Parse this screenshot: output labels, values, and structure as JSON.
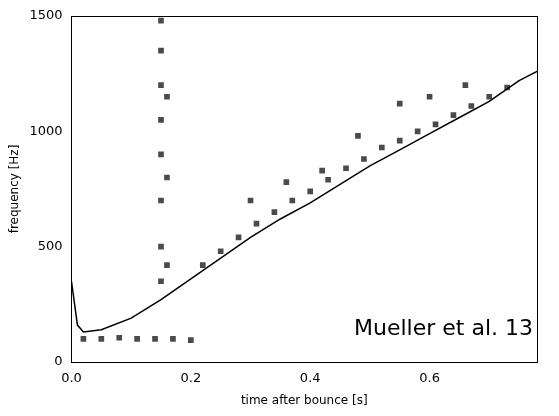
{
  "chart_data": {
    "type": "line",
    "x_label": "time after bounce [s]",
    "y_label": "frequency [Hz]",
    "annotations": [
      "Mueller et al. 13"
    ],
    "xlim": [
      0,
      0.78
    ],
    "xticks": [
      {
        "value": 0,
        "label": "0.0"
      },
      0.2,
      0.4,
      0.6
    ],
    "ylim": [
      0,
      1500
    ],
    "yticks": [
      0,
      500,
      1000,
      1500
    ],
    "grid": false,
    "series": [
      {
        "type": "scatter",
        "color": "#4a4a4a",
        "marker": "rect",
        "x": [
          0.02,
          0.05,
          0.08,
          0.11,
          0.14,
          0.17,
          0.2,
          0.15,
          0.15,
          0.15,
          0.15,
          0.15,
          0.15,
          0.15,
          0.15,
          0.16,
          0.16,
          0.16,
          0.22,
          0.25,
          0.28,
          0.31,
          0.34,
          0.37,
          0.4,
          0.43,
          0.46,
          0.49,
          0.52,
          0.55,
          0.58,
          0.61,
          0.64,
          0.67,
          0.7,
          0.73,
          0.3,
          0.36,
          0.42,
          0.48,
          0.55,
          0.6,
          0.66
        ],
        "values": [
          100,
          100,
          105,
          100,
          100,
          100,
          95,
          350,
          500,
          700,
          900,
          1050,
          1200,
          1350,
          1480,
          420,
          800,
          1150,
          420,
          480,
          540,
          600,
          650,
          700,
          740,
          790,
          840,
          880,
          930,
          960,
          1000,
          1030,
          1070,
          1110,
          1150,
          1190,
          700,
          780,
          830,
          980,
          1120,
          1150,
          1200
        ]
      },
      {
        "type": "line",
        "color": "#000000",
        "line_style": "solid",
        "x": [
          0,
          0.01,
          0.02,
          0.05,
          0.1,
          0.15,
          0.2,
          0.25,
          0.3,
          0.35,
          0.4,
          0.45,
          0.5,
          0.55,
          0.6,
          0.65,
          0.7,
          0.75,
          0.78
        ],
        "values": [
          350,
          160,
          130,
          140,
          190,
          270,
          360,
          450,
          540,
          620,
          690,
          770,
          850,
          920,
          990,
          1060,
          1130,
          1220,
          1260
        ]
      }
    ]
  }
}
